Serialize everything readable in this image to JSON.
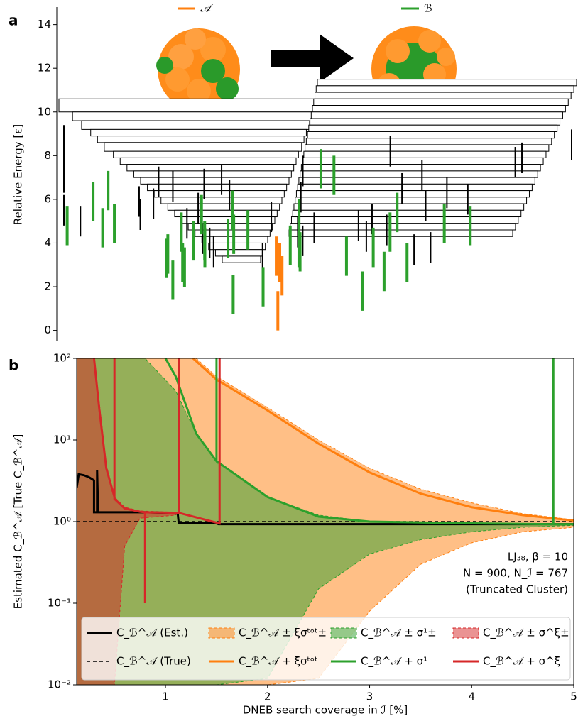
{
  "chart_data": [
    {
      "type": "disconnectivity",
      "panel_label": "a",
      "ylabel": "Relative Energy [ε]",
      "ylim": [
        -0.5,
        14.8
      ],
      "yticks": [
        0,
        2,
        4,
        6,
        8,
        10,
        12,
        14
      ],
      "left_levels": [
        10.6,
        10.0,
        9.6,
        9.2,
        8.9,
        8.6,
        8.2,
        7.9,
        7.6,
        7.3,
        7.0,
        6.7,
        6.4,
        6.1,
        5.8,
        5.5,
        5.2,
        4.9,
        4.6,
        4.3,
        4.0,
        3.7,
        3.4
      ],
      "right_levels": [
        11.5,
        11.2,
        10.9,
        10.6,
        10.3,
        10.0,
        9.7,
        9.4,
        9.1,
        8.8,
        8.5,
        8.2,
        7.9,
        7.6,
        7.3,
        7.0,
        6.7,
        6.4,
        6.1,
        5.8,
        5.5,
        5.2,
        4.9,
        4.6
      ],
      "series": [
        {
          "name": "𝒜",
          "color": "#ff7f0e",
          "values": [
            0.0,
            1.6,
            2.2,
            2.5
          ]
        },
        {
          "name": "ℬ",
          "color": "#2ca02c",
          "values": [
            2.2,
            2.6,
            3.9,
            2.7,
            3.0,
            4.5,
            3.2,
            0.75,
            0.9,
            1.4,
            1.8,
            2.0,
            2.4,
            2.9,
            3.5,
            3.8,
            1.1,
            2.2,
            4.0,
            3.3,
            2.9,
            3.7,
            4.6,
            4.4,
            5.0,
            3.9,
            2.5,
            6.5,
            4.2,
            3.6,
            4.0,
            5.5,
            6.2,
            3.2,
            3.6,
            2.9
          ]
        },
        {
          "color": "#000000",
          "values": [
            4.8,
            5.2,
            6.0,
            3.4,
            4.1,
            5.5,
            6.8,
            7.2,
            3.8,
            4.4,
            5.0,
            5.9,
            6.3,
            2.9,
            3.1,
            3.6,
            4.2,
            4.9,
            5.6,
            6.1,
            7.5,
            8.0,
            4.6,
            3.3,
            2.6,
            3.9,
            5.3,
            6.6,
            7.0,
            4.0,
            4.5,
            5.1,
            5.8,
            6.4,
            3.5,
            4.3,
            5.4,
            6.2,
            7.8,
            3.0
          ]
        }
      ]
    },
    {
      "type": "line",
      "panel_label": "b",
      "ylog": true,
      "xlabel": "DNEB search coverage in ℐ [%]",
      "ylabel": "Estimated C_ℬ^𝒜 [True C_ℬ^𝒜]",
      "xlim": [
        0.13,
        5
      ],
      "xticks": [
        1,
        2,
        3,
        4,
        5
      ],
      "ylim": [
        0.01,
        100
      ],
      "yticks": [
        {
          "value": 0.01,
          "label": "10⁻²"
        },
        {
          "value": 0.1,
          "label": "10⁻¹"
        },
        {
          "value": 1,
          "label": "10⁰"
        },
        {
          "value": 10,
          "label": "10¹"
        },
        {
          "value": 100,
          "label": "10²"
        }
      ],
      "annotations": [
        "LJ₃₈, β = 10",
        "N = 900, N_ℐ = 767",
        "(Truncated Cluster)"
      ],
      "series": [
        {
          "name": "C_ℬ^𝒜 (Est.)",
          "color": "#000000",
          "x": [
            0.13,
            0.15,
            0.2,
            0.25,
            0.3,
            0.3,
            0.33,
            0.33,
            0.34,
            0.5,
            0.8,
            1.0,
            1.12,
            1.13,
            1.5,
            1.52,
            2,
            3,
            4,
            5
          ],
          "values": [
            2.6,
            3.8,
            3.7,
            3.5,
            3.2,
            1.3,
            1.3,
            4.3,
            1.3,
            1.3,
            1.3,
            1.28,
            1.25,
            0.95,
            0.95,
            0.93,
            0.93,
            0.93,
            0.93,
            0.93
          ]
        },
        {
          "name": "C_ℬ^𝒜 ± ξσᵗᵒᵗ±",
          "color": "#ff7f0e",
          "x": [
            0.13,
            0.5,
            0.8,
            1.1,
            1.3,
            1.5,
            2,
            2.5,
            3,
            3.5,
            4,
            4.5,
            5
          ],
          "upper": [
            100,
            100,
            100,
            100,
            100,
            60,
            25,
            10,
            4.5,
            2.5,
            1.7,
            1.25,
            1.05
          ],
          "lower": [
            0.01,
            0.01,
            0.01,
            0.01,
            0.01,
            0.01,
            0.01,
            0.012,
            0.08,
            0.3,
            0.55,
            0.75,
            0.85
          ]
        },
        {
          "name": "C_ℬ^𝒜 ± σ¹±",
          "color": "#2ca02c",
          "x": [
            0.13,
            0.5,
            0.8,
            1.1,
            1.3,
            1.5,
            2,
            2.5,
            3,
            3.5,
            4,
            4.5,
            5
          ],
          "upper": [
            100,
            100,
            100,
            40,
            12,
            5.5,
            2,
            1.2,
            1.0,
            0.97,
            0.95,
            0.94,
            0.93
          ],
          "lower": [
            0.01,
            0.01,
            0.01,
            0.01,
            0.01,
            0.01,
            0.012,
            0.15,
            0.4,
            0.6,
            0.75,
            0.85,
            0.9
          ]
        },
        {
          "name": "C_ℬ^𝒜 ± σ^ξ±",
          "color": "#d62728",
          "x": [
            0.13,
            0.3,
            0.35,
            0.42,
            0.5,
            0.6,
            0.75,
            1.1
          ],
          "upper": [
            100,
            100,
            30,
            5,
            2,
            1.5,
            1.35,
            1.3
          ],
          "lower": [
            0.01,
            0.01,
            0.01,
            0.01,
            0.01,
            0.5,
            1.1,
            1.2
          ]
        },
        {
          "name": "C_ℬ^𝒜 (True)",
          "color": "#000000",
          "dash": true,
          "x": [
            0.13,
            5
          ],
          "values": [
            1,
            1
          ]
        },
        {
          "name": "C_ℬ^𝒜 + ξσᵗᵒᵗ",
          "color": "#ff7f0e",
          "x": [
            1.27,
            1.5,
            2,
            2.5,
            3,
            3.5,
            4,
            4.5,
            5
          ],
          "values": [
            100,
            55,
            23,
            9,
            4,
            2.2,
            1.5,
            1.2,
            1.03
          ]
        },
        {
          "name": "C_ℬ^𝒜 + σ¹",
          "color": "#2ca02c",
          "x": [
            1.0,
            1.1,
            1.3,
            1.5,
            1.5,
            1.5,
            2,
            2.5,
            3,
            4,
            4.8,
            4.8,
            4.8,
            5
          ],
          "values": [
            100,
            60,
            12,
            5.5,
            100,
            5.5,
            2,
            1.15,
            1.0,
            0.95,
            0.93,
            100,
            0.93,
            0.93
          ]
        },
        {
          "name": "C_ℬ^𝒜 + σ^ξ",
          "color": "#d62728",
          "x": [
            0.3,
            0.35,
            0.42,
            0.5,
            0.5,
            0.5,
            0.6,
            0.75,
            0.8,
            0.8,
            0.8,
            1.13,
            1.13,
            1.13,
            1.53,
            1.53,
            1.53
          ],
          "values": [
            100,
            25,
            4.5,
            2,
            100,
            1.9,
            1.45,
            1.32,
            1.3,
            0.1,
            1.3,
            1.28,
            100,
            1.28,
            0.95,
            100,
            0.95
          ]
        }
      ]
    }
  ]
}
